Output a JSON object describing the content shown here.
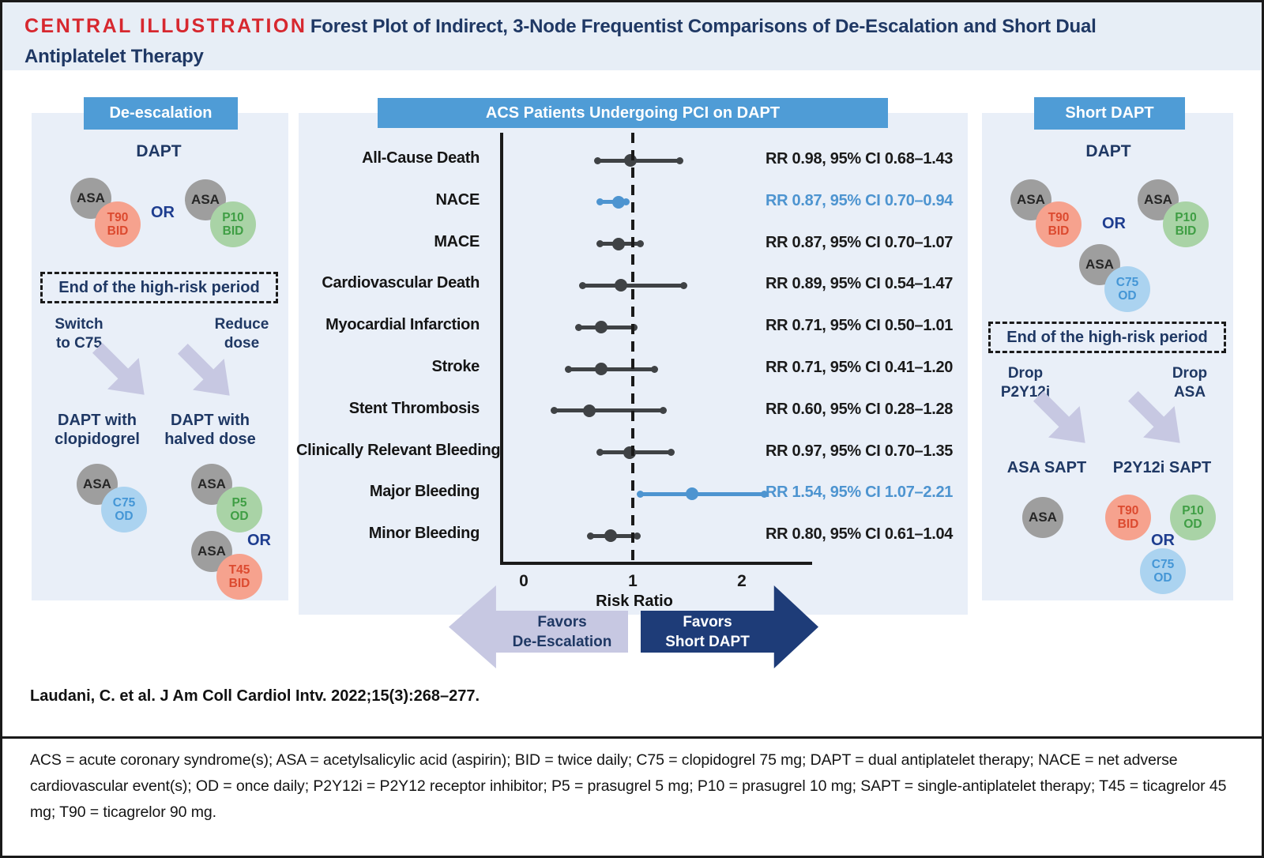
{
  "title": {
    "label": "CENTRAL ILLUSTRATION",
    "text": "Forest Plot of Indirect, 3-Node Frequentist Comparisons of De-Escalation and Short Dual\nAntiplatelet Therapy"
  },
  "colors": {
    "header_blue": "#4F9CD6",
    "highlight_blue": "#4D94D0",
    "navy": "#1F3864",
    "red": "#D7282F",
    "salmon_circle": "#F6A28E",
    "green_circle": "#A9D3A6",
    "blue_circle": "#ABD3F0",
    "gray_circle": "#9E9E9E",
    "lavender_arrow": "#C7C8E2",
    "dark_arrow": "#1E3C78",
    "panel_bg": "#E9EFF8"
  },
  "circles": {
    "asa": "ASA",
    "t90_bid": "T90\nBID",
    "p10_bid": "P10\nBID",
    "c75_od": "C75\nOD",
    "p5_od": "P5\nOD",
    "t45_bid": "T45\nBID",
    "p10_od": "P10\nOD"
  },
  "left_panel": {
    "header": "De-escalation",
    "dapt_label": "DAPT",
    "or_label": "OR",
    "risk_box": "End of the high-risk period",
    "switch_label": "Switch\nto C75",
    "reduce_label": "Reduce\ndose",
    "dapt_clopidogrel": "DAPT with\nclopidogrel",
    "dapt_halved": "DAPT with\nhalved dose",
    "or_label2": "OR"
  },
  "right_panel": {
    "header": "Short DAPT",
    "dapt_label": "DAPT",
    "or_label": "OR",
    "risk_box": "End of the high-risk period",
    "drop_p2y12i": "Drop\nP2Y12i",
    "drop_asa": "Drop\nASA",
    "asa_sapt": "ASA SAPT",
    "p2y12i_sapt": "P2Y12i SAPT",
    "or_label2": "OR"
  },
  "chart_data": {
    "type": "forest",
    "title": "ACS Patients Undergoing PCI on DAPT",
    "xlabel": "Risk Ratio",
    "x_ticks": [
      0,
      1,
      2
    ],
    "x_range": [
      -0.2,
      2.65
    ],
    "reference_line": 1,
    "legend_position": "none",
    "grid": false,
    "favors_left": "Favors\nDe-Escalation",
    "favors_right": "Favors\nShort DAPT",
    "rows": [
      {
        "label": "All-Cause Death",
        "rr": 0.98,
        "ci_low": 0.68,
        "ci_high": 1.43,
        "text": "RR 0.98, 95% CI 0.68–1.43",
        "highlight": false
      },
      {
        "label": "NACE",
        "rr": 0.87,
        "ci_low": 0.7,
        "ci_high": 0.94,
        "text": "RR 0.87, 95% CI 0.70–0.94",
        "highlight": true
      },
      {
        "label": "MACE",
        "rr": 0.87,
        "ci_low": 0.7,
        "ci_high": 1.07,
        "text": "RR 0.87, 95% CI 0.70–1.07",
        "highlight": false
      },
      {
        "label": "Cardiovascular Death",
        "rr": 0.89,
        "ci_low": 0.54,
        "ci_high": 1.47,
        "text": "RR 0.89, 95% CI 0.54–1.47",
        "highlight": false
      },
      {
        "label": "Myocardial Infarction",
        "rr": 0.71,
        "ci_low": 0.5,
        "ci_high": 1.01,
        "text": "RR 0.71, 95% CI 0.50–1.01",
        "highlight": false
      },
      {
        "label": "Stroke",
        "rr": 0.71,
        "ci_low": 0.41,
        "ci_high": 1.2,
        "text": "RR 0.71, 95% CI 0.41–1.20",
        "highlight": false
      },
      {
        "label": "Stent Thrombosis",
        "rr": 0.6,
        "ci_low": 0.28,
        "ci_high": 1.28,
        "text": "RR 0.60, 95% CI 0.28–1.28",
        "highlight": false
      },
      {
        "label": "Clinically Relevant Bleeding",
        "rr": 0.97,
        "ci_low": 0.7,
        "ci_high": 1.35,
        "text": "RR 0.97, 95% CI 0.70–1.35",
        "highlight": false
      },
      {
        "label": "Major Bleeding",
        "rr": 1.54,
        "ci_low": 1.07,
        "ci_high": 2.21,
        "text": "RR 1.54, 95% CI 1.07–2.21",
        "highlight": true
      },
      {
        "label": "Minor Bleeding",
        "rr": 0.8,
        "ci_low": 0.61,
        "ci_high": 1.04,
        "text": "RR 0.80, 95% CI 0.61–1.04",
        "highlight": false
      }
    ]
  },
  "citation": "Laudani, C. et al. J Am Coll Cardiol Intv. 2022;15(3):268–277.",
  "footnote": "ACS = acute coronary syndrome(s); ASA = acetylsalicylic acid (aspirin); BID = twice daily; C75 = clopidogrel 75 mg; DAPT = dual antiplatelet therapy; NACE = net adverse cardiovascular event(s); OD = once daily; P2Y12i = P2Y12 receptor inhibitor; P5 = prasugrel 5 mg; P10 = prasugrel 10 mg; SAPT = single-antiplatelet therapy; T45 = ticagrelor 45 mg; T90 = ticagrelor 90 mg."
}
